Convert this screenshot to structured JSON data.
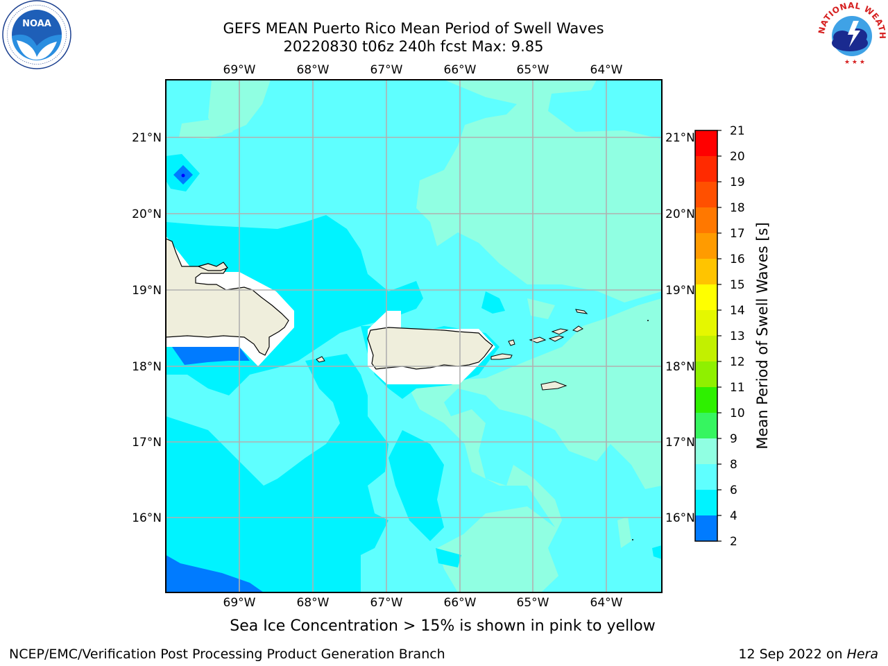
{
  "header": {
    "title_line1": "GEFS MEAN Puerto Rico Mean Period of Swell Waves",
    "title_line2": "20220830 t06z 240h fcst   Max: 9.85"
  },
  "logos": {
    "left": "NOAA",
    "right": "NATIONAL WEATHER SERVICE"
  },
  "map": {
    "lon_labels": [
      "69°W",
      "68°W",
      "67°W",
      "66°W",
      "65°W",
      "64°W"
    ],
    "lat_labels": [
      "21°N",
      "20°N",
      "19°N",
      "18°N",
      "17°N",
      "16°N"
    ],
    "fill_colors": {
      "land": "#efeedc",
      "masked": "#ffffff",
      "gridline": "#b0b0b0"
    }
  },
  "colorbar": {
    "label": "Mean Period of Swell Waves [s]",
    "ticks": [
      "21",
      "20",
      "19",
      "18",
      "17",
      "16",
      "15",
      "14",
      "13",
      "12",
      "11",
      "10",
      "9",
      "8",
      "6",
      "4",
      "2"
    ],
    "colors": [
      "#ff0000",
      "#ff2a00",
      "#ff5000",
      "#ff7800",
      "#ff9b00",
      "#ffc400",
      "#ffff00",
      "#e5f700",
      "#c2f000",
      "#8ff000",
      "#2ef000",
      "#36f560",
      "#90ffe2",
      "#5fffff",
      "#00f3ff",
      "#007bff",
      "#0000ff"
    ]
  },
  "footer": {
    "ice_note": "Sea Ice Concentration > 15% is shown in pink to yellow",
    "credit_left": "NCEP/EMC/Verification Post Processing Product Generation Branch",
    "credit_date": "12 Sep 2022 on ",
    "credit_machine": "Hera"
  }
}
